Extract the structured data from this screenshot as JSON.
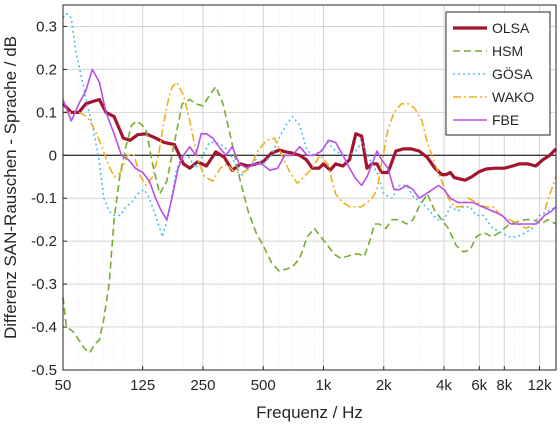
{
  "chart_data": {
    "type": "line",
    "xlabel": "Frequenz / Hz",
    "ylabel": "Differenz SAN-Rauschen - Sprache / dB",
    "xscale": "log",
    "xlim": [
      50,
      14500
    ],
    "ylim": [
      -0.5,
      0.35
    ],
    "grid": true,
    "legend_position": "top-right",
    "zero_line": true,
    "x_ticks": [
      {
        "value": 50,
        "label": "50"
      },
      {
        "value": 125,
        "label": "125"
      },
      {
        "value": 250,
        "label": "250"
      },
      {
        "value": 500,
        "label": "500"
      },
      {
        "value": 1000,
        "label": "1k"
      },
      {
        "value": 2000,
        "label": "2k"
      },
      {
        "value": 4000,
        "label": "4k"
      },
      {
        "value": 6000,
        "label": "6k"
      },
      {
        "value": 8000,
        "label": "8k"
      },
      {
        "value": 12000,
        "label": "12k"
      }
    ],
    "y_ticks": [
      {
        "value": 0.3,
        "label": "0.3"
      },
      {
        "value": 0.2,
        "label": "0.2"
      },
      {
        "value": 0.1,
        "label": "0.1"
      },
      {
        "value": 0,
        "label": "0"
      },
      {
        "value": -0.1,
        "label": "-0.1"
      },
      {
        "value": -0.2,
        "label": "-0.2"
      },
      {
        "value": -0.3,
        "label": "-0.3"
      },
      {
        "value": -0.4,
        "label": "-0.4"
      },
      {
        "value": -0.5,
        "label": "-0.5"
      }
    ],
    "series": [
      {
        "name": "OLSA",
        "color": "#A2142F",
        "dash": "solid",
        "x": [
          50,
          55,
          60,
          65,
          70,
          76,
          82,
          90,
          100,
          108,
          118,
          130,
          145,
          160,
          180,
          200,
          215,
          235,
          260,
          290,
          320,
          350,
          385,
          420,
          460,
          500,
          550,
          600,
          650,
          700,
          760,
          820,
          880,
          950,
          1000,
          1080,
          1150,
          1250,
          1350,
          1450,
          1550,
          1650,
          1750,
          1850,
          1950,
          2100,
          2300,
          2500,
          2750,
          3000,
          3300,
          3600,
          3900,
          4100,
          4300,
          4500,
          4800,
          5100,
          5500,
          6000,
          6500,
          7200,
          8000,
          8800,
          9500,
          10500,
          11500,
          12500,
          13500,
          14500
        ],
        "y": [
          0.12,
          0.1,
          0.1,
          0.12,
          0.125,
          0.13,
          0.1,
          0.09,
          0.04,
          0.035,
          0.048,
          0.05,
          0.04,
          0.03,
          0.025,
          -0.02,
          -0.03,
          -0.015,
          -0.025,
          0.008,
          -0.005,
          -0.035,
          -0.02,
          -0.025,
          -0.02,
          -0.015,
          0.005,
          0.012,
          0.008,
          0.005,
          0.0,
          -0.01,
          -0.03,
          -0.03,
          -0.02,
          -0.035,
          -0.02,
          -0.025,
          -0.01,
          0.05,
          0.045,
          -0.03,
          -0.02,
          -0.02,
          -0.04,
          -0.04,
          0.01,
          0.015,
          0.015,
          0.01,
          -0.005,
          -0.03,
          -0.045,
          -0.045,
          -0.04,
          -0.052,
          -0.055,
          -0.058,
          -0.05,
          -0.038,
          -0.032,
          -0.03,
          -0.03,
          -0.025,
          -0.02,
          -0.02,
          -0.025,
          -0.01,
          0.0,
          0.015
        ]
      },
      {
        "name": "HSM",
        "color": "#77AC30",
        "dash": "7,4",
        "x": [
          50,
          52,
          56,
          60,
          64,
          68,
          72,
          76,
          80,
          85,
          90,
          96,
          103,
          110,
          117,
          124,
          130,
          140,
          152,
          165,
          180,
          197,
          215,
          230,
          250,
          270,
          290,
          315,
          345,
          380,
          420,
          460,
          500,
          550,
          600,
          650,
          700,
          760,
          830,
          900,
          970,
          1050,
          1130,
          1220,
          1320,
          1420,
          1500,
          1600,
          1700,
          1800,
          1900,
          2050,
          2200,
          2400,
          2600,
          2800,
          3000,
          3300,
          3600,
          3900,
          4200,
          4600,
          5000,
          5400,
          5800,
          6300,
          7000,
          7800,
          8500,
          9300,
          10200,
          11200,
          12200,
          13200,
          14500
        ],
        "y": [
          -0.33,
          -0.4,
          -0.41,
          -0.43,
          -0.45,
          -0.46,
          -0.44,
          -0.43,
          -0.38,
          -0.3,
          -0.15,
          -0.05,
          0.02,
          0.07,
          0.08,
          0.07,
          0.06,
          -0.02,
          -0.09,
          -0.06,
          0.03,
          0.12,
          0.13,
          0.12,
          0.115,
          0.14,
          0.16,
          0.12,
          0.04,
          -0.05,
          -0.13,
          -0.18,
          -0.21,
          -0.25,
          -0.27,
          -0.265,
          -0.26,
          -0.24,
          -0.19,
          -0.17,
          -0.19,
          -0.21,
          -0.23,
          -0.24,
          -0.235,
          -0.23,
          -0.23,
          -0.235,
          -0.2,
          -0.16,
          -0.16,
          -0.17,
          -0.15,
          -0.15,
          -0.16,
          -0.15,
          -0.12,
          -0.09,
          -0.13,
          -0.15,
          -0.17,
          -0.21,
          -0.225,
          -0.22,
          -0.19,
          -0.18,
          -0.19,
          -0.175,
          -0.16,
          -0.155,
          -0.15,
          -0.15,
          -0.16,
          -0.15,
          -0.16
        ]
      },
      {
        "name": "GÖSA",
        "color": "#4DBEEE",
        "dash": "2,3",
        "x": [
          50,
          52,
          55,
          58,
          62,
          66,
          70,
          75,
          80,
          85,
          90,
          97,
          103,
          110,
          118,
          127,
          135,
          145,
          157,
          170,
          183,
          197,
          210,
          230,
          250,
          270,
          290,
          320,
          350,
          385,
          420,
          460,
          500,
          550,
          600,
          650,
          700,
          760,
          830,
          900,
          970,
          1050,
          1150,
          1250,
          1350,
          1450,
          1550,
          1700,
          1850,
          2000,
          2200,
          2400,
          2600,
          2850,
          3100,
          3400,
          3700,
          4000,
          4300,
          4700,
          5000,
          5400,
          5800,
          6300,
          7000,
          7700,
          8500,
          9300,
          10200,
          11000,
          12000,
          13200,
          14500
        ],
        "y": [
          0.32,
          0.33,
          0.32,
          0.24,
          0.18,
          0.12,
          0.07,
          0.0,
          -0.1,
          -0.13,
          -0.14,
          -0.14,
          -0.12,
          -0.11,
          -0.09,
          -0.08,
          -0.1,
          -0.14,
          -0.19,
          -0.13,
          -0.04,
          0.0,
          0.0,
          -0.03,
          0.0,
          0.03,
          0.03,
          0.02,
          -0.005,
          -0.05,
          -0.03,
          -0.01,
          -0.02,
          0.0,
          0.04,
          0.07,
          0.09,
          0.07,
          0.01,
          0.0,
          0.01,
          0.03,
          0.01,
          0.0,
          0.0,
          0.01,
          0.03,
          -0.01,
          -0.04,
          -0.09,
          -0.1,
          -0.07,
          -0.07,
          -0.1,
          -0.11,
          -0.13,
          -0.15,
          -0.15,
          -0.12,
          -0.13,
          -0.12,
          -0.12,
          -0.14,
          -0.14,
          -0.17,
          -0.18,
          -0.19,
          -0.19,
          -0.18,
          -0.17,
          -0.14,
          -0.13,
          -0.12
        ]
      },
      {
        "name": "WAKO",
        "color": "#EDB120",
        "dash": "8,3,2,3",
        "x": [
          50,
          55,
          60,
          66,
          72,
          78,
          84,
          90,
          97,
          105,
          113,
          122,
          130,
          140,
          150,
          160,
          168,
          176,
          185,
          200,
          215,
          235,
          255,
          280,
          305,
          330,
          360,
          395,
          430,
          470,
          520,
          570,
          620,
          680,
          740,
          800,
          880,
          960,
          1050,
          1150,
          1250,
          1350,
          1450,
          1550,
          1650,
          1750,
          1850,
          1950,
          2100,
          2250,
          2450,
          2650,
          2850,
          3100,
          3300,
          3600,
          3900,
          4200,
          4500,
          4900,
          5300,
          5800,
          6400,
          7000,
          7700,
          8500,
          9400,
          10300,
          11300,
          12300,
          13300,
          14500
        ],
        "y": [
          0.1,
          0.1,
          0.1,
          0.09,
          0.06,
          0.02,
          -0.02,
          -0.05,
          -0.04,
          0.0,
          0.0,
          -0.05,
          -0.07,
          -0.05,
          0.0,
          0.08,
          0.13,
          0.16,
          0.17,
          0.14,
          0.08,
          -0.01,
          -0.05,
          -0.06,
          -0.03,
          -0.02,
          -0.04,
          -0.04,
          -0.03,
          0.01,
          0.035,
          0.04,
          0.0,
          -0.04,
          -0.065,
          -0.05,
          -0.03,
          0.0,
          -0.02,
          -0.09,
          -0.11,
          -0.12,
          -0.12,
          -0.12,
          -0.11,
          -0.1,
          -0.08,
          -0.02,
          0.06,
          0.1,
          0.12,
          0.12,
          0.11,
          0.08,
          0.03,
          -0.02,
          -0.06,
          -0.1,
          -0.12,
          -0.12,
          -0.1,
          -0.11,
          -0.12,
          -0.12,
          -0.14,
          -0.15,
          -0.16,
          -0.17,
          -0.16,
          -0.15,
          -0.1,
          -0.05
        ]
      },
      {
        "name": "FBE",
        "color": "#B94FE6",
        "dash": "solid",
        "x": [
          50,
          55,
          60,
          65,
          70,
          76,
          82,
          90,
          98,
          106,
          115,
          125,
          135,
          145,
          155,
          165,
          175,
          188,
          200,
          215,
          230,
          245,
          260,
          280,
          300,
          325,
          350,
          380,
          415,
          450,
          490,
          540,
          590,
          640,
          700,
          760,
          830,
          900,
          980,
          1060,
          1150,
          1250,
          1350,
          1450,
          1550,
          1650,
          1750,
          1850,
          1950,
          2100,
          2250,
          2400,
          2600,
          2800,
          3000,
          3250,
          3500,
          3750,
          4000,
          4300,
          4700,
          5100,
          5600,
          6200,
          7000,
          7800,
          8600,
          9500,
          10500,
          11600,
          12700,
          13800,
          14500
        ],
        "y": [
          0.13,
          0.08,
          0.12,
          0.15,
          0.2,
          0.17,
          0.1,
          0.05,
          0.0,
          -0.01,
          -0.03,
          -0.04,
          -0.06,
          -0.1,
          -0.13,
          -0.15,
          -0.1,
          -0.03,
          0.0,
          0.02,
          0.0,
          0.05,
          0.05,
          0.04,
          0.02,
          0.0,
          0.02,
          -0.02,
          -0.03,
          -0.02,
          -0.02,
          -0.035,
          -0.03,
          0.0,
          0.0,
          0.02,
          0.0,
          0.0,
          0.01,
          0.035,
          0.03,
          0.0,
          -0.03,
          -0.055,
          -0.07,
          -0.05,
          -0.02,
          0.01,
          -0.01,
          -0.03,
          -0.08,
          -0.08,
          -0.07,
          -0.08,
          -0.1,
          -0.09,
          -0.08,
          -0.07,
          -0.08,
          -0.1,
          -0.11,
          -0.11,
          -0.11,
          -0.12,
          -0.13,
          -0.14,
          -0.16,
          -0.16,
          -0.16,
          -0.16,
          -0.14,
          -0.13,
          -0.12
        ]
      }
    ]
  }
}
